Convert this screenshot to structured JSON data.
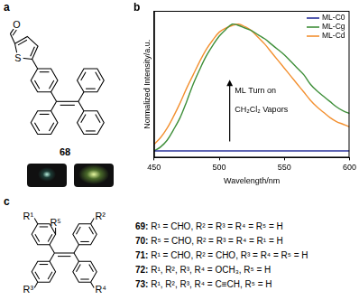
{
  "panel_labels": [
    "a",
    "b",
    "c"
  ],
  "panel_a": {
    "compound": "68",
    "atoms": [
      "O",
      "S"
    ]
  },
  "chart_data": {
    "type": "line",
    "x_label": "Wavelength/nm",
    "y_label": "Normalized Intensity/a.u.",
    "x": [
      450,
      455,
      460,
      465,
      470,
      475,
      480,
      485,
      490,
      495,
      500,
      505,
      510,
      515,
      520,
      525,
      530,
      535,
      540,
      545,
      550,
      555,
      560,
      565,
      570,
      575,
      580,
      585,
      590,
      595,
      600
    ],
    "series": [
      {
        "name": "ML-C0",
        "color": "#27309a",
        "values": [
          0.05,
          0.05,
          0.05,
          0.05,
          0.05,
          0.05,
          0.05,
          0.05,
          0.05,
          0.05,
          0.05,
          0.05,
          0.05,
          0.05,
          0.05,
          0.05,
          0.05,
          0.05,
          0.05,
          0.05,
          0.05,
          0.05,
          0.05,
          0.05,
          0.05,
          0.05,
          0.05,
          0.05,
          0.05,
          0.05,
          0.05
        ]
      },
      {
        "name": "ML-Cg",
        "color": "#3f8f3a",
        "values": [
          0.05,
          0.08,
          0.13,
          0.21,
          0.3,
          0.42,
          0.55,
          0.66,
          0.76,
          0.84,
          0.91,
          0.96,
          1.0,
          0.99,
          0.97,
          0.95,
          0.92,
          0.89,
          0.85,
          0.81,
          0.77,
          0.72,
          0.67,
          0.62,
          0.55,
          0.5,
          0.46,
          0.42,
          0.38,
          0.35,
          0.33
        ]
      },
      {
        "name": "ML-Cd",
        "color": "#f39030",
        "values": [
          0.1,
          0.15,
          0.22,
          0.31,
          0.41,
          0.52,
          0.62,
          0.72,
          0.81,
          0.88,
          0.94,
          0.97,
          0.99,
          1.0,
          0.98,
          0.95,
          0.9,
          0.85,
          0.79,
          0.73,
          0.67,
          0.61,
          0.55,
          0.49,
          0.43,
          0.38,
          0.34,
          0.3,
          0.27,
          0.25,
          0.23
        ]
      }
    ],
    "xlim": [
      450,
      600
    ],
    "xticks": [
      450,
      500,
      550,
      600
    ],
    "ylim": [
      0,
      1.1
    ],
    "tick_labels": "x",
    "grid": false,
    "legend": "upper right",
    "annotations": [
      "ML Turn on",
      "CH₂Cl₂ Vapors"
    ]
  },
  "panel_c": {
    "substituents": [
      "R¹",
      "R²",
      "R³",
      "R⁴",
      "R⁵"
    ],
    "compounds": [
      "69: R¹ = CHO, R² = R³ = R⁴ = R⁵ = H",
      "70: R⁵ = CHO, R² = R³ = R⁴ = R¹ = H",
      "71: R¹ = CHO, R² = CHO, R³ = R⁴ = R⁵ = H",
      "72: R¹, R², R³, R⁴ = OCH₃, R⁵ = H",
      "73: R¹, R², R³, R⁴ = C≡CH, R⁵ = H"
    ]
  }
}
